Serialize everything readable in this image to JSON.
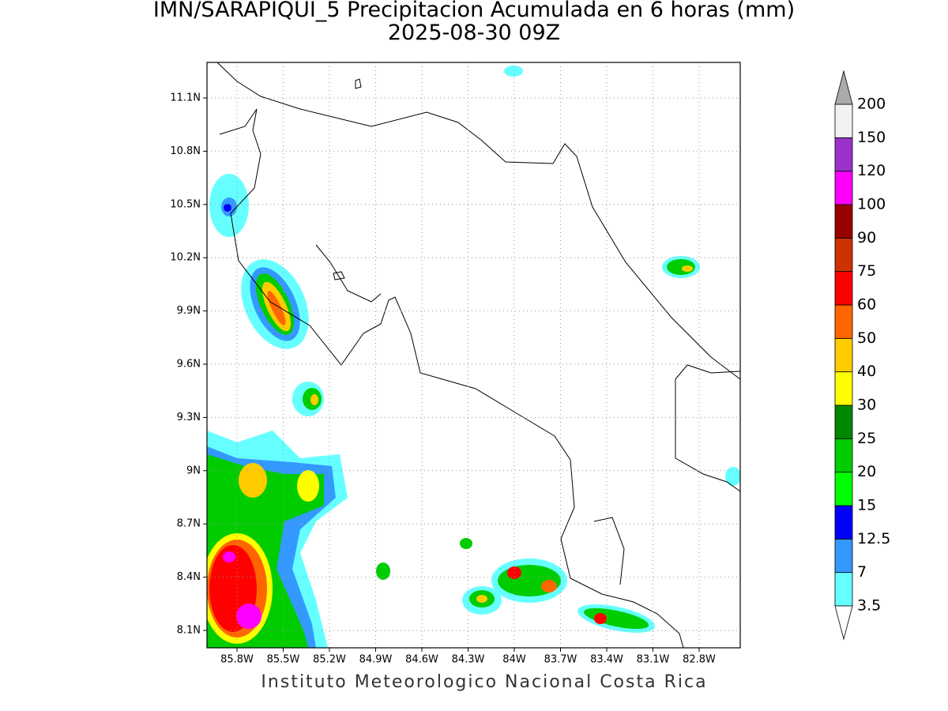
{
  "title": "IMN/SARAPIQUI_5 Precipitacion Acumulada en 6 horas (mm)",
  "subtitle": "2025-08-30 09Z",
  "lat_labels": [
    "11.1N",
    "10.8N",
    "10.5N",
    "10.2N",
    "9.9N",
    "9.6N",
    "9.3N",
    "9N",
    "8.7N",
    "8.4N",
    "8.1N"
  ],
  "lon_labels": [
    "85.8W",
    "85.5W",
    "85.2W",
    "84.9W",
    "84.6W",
    "84.3W",
    "84W",
    "83.7W",
    "83.4W",
    "83.1W",
    "82.8W"
  ],
  "colorbar": {
    "levels": [
      3.5,
      7,
      12.5,
      15,
      20,
      25,
      30,
      40,
      50,
      60,
      75,
      90,
      100,
      120,
      150,
      200
    ],
    "colors": [
      "#66ffff",
      "#3399ff",
      "#0000ff",
      "#00ff00",
      "#00cc00",
      "#008800",
      "#ffff00",
      "#ffcc00",
      "#ff6600",
      "#ff0000",
      "#cc3300",
      "#990000",
      "#ff00ff",
      "#9933cc",
      "#f2f2f2"
    ],
    "under_color": "#ffffff",
    "over_color": "#aaaaaa"
  },
  "footer": "Instituto Meteorologico Nacional Costa Rica"
}
